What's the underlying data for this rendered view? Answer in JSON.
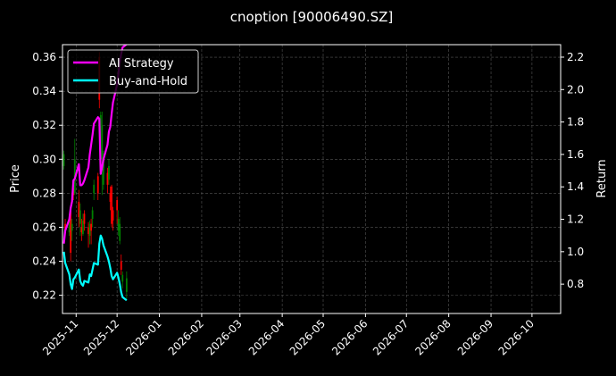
{
  "chart_data": {
    "type": "line",
    "title": "cnoption [90006490.SZ]",
    "xlabel": "",
    "ylabel_left": "Price",
    "ylabel_right": "Return",
    "xlim": [
      "2025-10-22",
      "2026-10-22"
    ],
    "ylim_left": [
      0.2093,
      0.3674
    ],
    "ylim_right": [
      0.619,
      2.277
    ],
    "grid": true,
    "legend_position": "top-left",
    "x_ticks": [
      "2025-11",
      "2025-12",
      "2026-01",
      "2026-02",
      "2026-03",
      "2026-04",
      "2026-05",
      "2026-06",
      "2026-07",
      "2026-08",
      "2026-09",
      "2026-10"
    ],
    "y_ticks_left": [
      "0.22",
      "0.24",
      "0.26",
      "0.28",
      "0.30",
      "0.32",
      "0.34",
      "0.36"
    ],
    "y_ticks_right": [
      "0.8",
      "1.0",
      "1.2",
      "1.4",
      "1.6",
      "1.8",
      "2.0",
      "2.2"
    ],
    "dates": [
      "2025-10-23",
      "2025-10-24",
      "2025-10-27",
      "2025-10-28",
      "2025-10-29",
      "2025-10-30",
      "2025-10-31",
      "2025-11-03",
      "2025-11-04",
      "2025-11-05",
      "2025-11-06",
      "2025-11-07",
      "2025-11-10",
      "2025-11-11",
      "2025-11-12",
      "2025-11-13",
      "2025-11-14",
      "2025-11-17",
      "2025-11-18",
      "2025-11-19",
      "2025-11-20",
      "2025-11-21",
      "2025-11-24",
      "2025-11-25",
      "2025-11-26",
      "2025-11-27",
      "2025-11-28",
      "2025-12-01",
      "2025-12-02",
      "2025-12-03",
      "2025-12-04",
      "2025-12-05",
      "2025-12-08"
    ],
    "candles": {
      "open": [
        0.296,
        0.262,
        0.257,
        0.27,
        0.258,
        0.283,
        0.28,
        0.275,
        0.262,
        0.26,
        0.256,
        0.268,
        0.26,
        0.255,
        0.262,
        0.265,
        0.28,
        0.29,
        0.36,
        0.32,
        0.3,
        0.285,
        0.292,
        0.288,
        0.28,
        0.284,
        0.27,
        0.276,
        0.258,
        0.252,
        0.24,
        0.228,
        0.222
      ],
      "high": [
        0.305,
        0.265,
        0.268,
        0.272,
        0.265,
        0.288,
        0.312,
        0.282,
        0.274,
        0.265,
        0.268,
        0.27,
        0.263,
        0.264,
        0.265,
        0.272,
        0.288,
        0.292,
        0.363,
        0.328,
        0.328,
        0.305,
        0.295,
        0.3,
        0.284,
        0.285,
        0.272,
        0.278,
        0.27,
        0.266,
        0.244,
        0.234,
        0.234
      ],
      "low": [
        0.294,
        0.255,
        0.255,
        0.24,
        0.252,
        0.276,
        0.279,
        0.26,
        0.255,
        0.252,
        0.255,
        0.258,
        0.248,
        0.25,
        0.25,
        0.26,
        0.276,
        0.276,
        0.33,
        0.3,
        0.279,
        0.282,
        0.28,
        0.285,
        0.27,
        0.26,
        0.258,
        0.262,
        0.255,
        0.25,
        0.232,
        0.224,
        0.218
      ],
      "close": [
        0.303,
        0.258,
        0.265,
        0.245,
        0.262,
        0.279,
        0.3,
        0.266,
        0.27,
        0.257,
        0.264,
        0.262,
        0.256,
        0.262,
        0.258,
        0.27,
        0.285,
        0.28,
        0.335,
        0.326,
        0.32,
        0.3,
        0.285,
        0.296,
        0.275,
        0.262,
        0.264,
        0.27,
        0.265,
        0.262,
        0.235,
        0.232,
        0.23
      ],
      "up_color": "#008000",
      "down_color": "#ff0000"
    },
    "series": [
      {
        "name": "AI Strategy",
        "color": "#ff00ff",
        "axis": "right",
        "values": [
          1.05,
          1.13,
          1.2,
          1.27,
          1.31,
          1.44,
          1.45,
          1.54,
          1.41,
          1.41,
          1.42,
          1.44,
          1.52,
          1.6,
          1.66,
          1.72,
          1.79,
          1.83,
          1.82,
          1.48,
          1.52,
          1.57,
          1.66,
          1.74,
          1.77,
          1.85,
          1.92,
          2.03,
          2.1,
          2.17,
          2.22,
          2.26,
          2.28
        ]
      },
      {
        "name": "Buy-and-Hold",
        "color": "#00ffff",
        "axis": "right",
        "values": [
          1.0,
          0.93,
          0.86,
          0.8,
          0.77,
          0.83,
          0.84,
          0.89,
          0.82,
          0.8,
          0.79,
          0.82,
          0.81,
          0.86,
          0.85,
          0.89,
          0.93,
          0.92,
          1.05,
          1.1,
          1.08,
          1.04,
          0.97,
          0.94,
          0.9,
          0.85,
          0.83,
          0.87,
          0.84,
          0.8,
          0.75,
          0.72,
          0.7
        ]
      }
    ]
  }
}
